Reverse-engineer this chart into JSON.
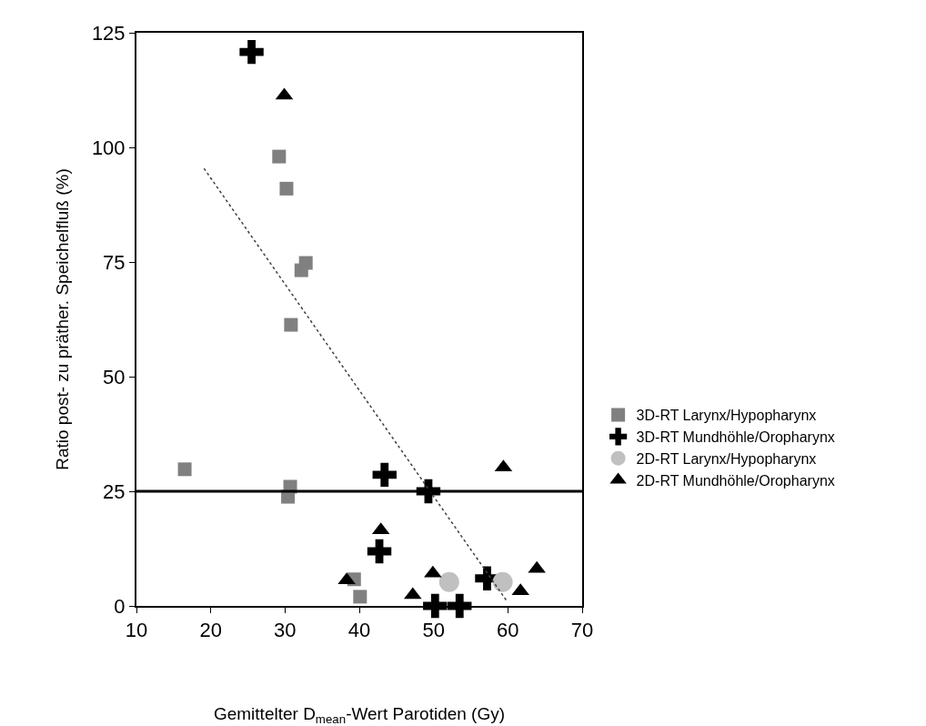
{
  "chart_data": {
    "type": "scatter",
    "xlabel": "Gemittelter D$_{mean}$-Wert Parotiden (Gy)",
    "ylabel": "Ratio post- zu präther. Speichelfluß (%)",
    "xlim": [
      10,
      70
    ],
    "xticks": [
      10,
      20,
      30,
      40,
      50,
      60,
      70
    ],
    "ylim": [
      0,
      125
    ],
    "yticks": [
      0,
      25,
      50,
      75,
      100,
      125
    ],
    "grid": false,
    "legend": "right",
    "series": [
      {
        "name": "3D-RT Larynx/Hypopharynx",
        "color": "#808080",
        "marker": "square",
        "x": [
          29.2,
          30.2,
          32.8,
          32.2,
          30.8,
          16.5,
          30.7,
          30.4,
          39.3,
          40.1
        ],
        "values": [
          98,
          91,
          74.8,
          73.2,
          61.3,
          29.8,
          26,
          23.8,
          5.8,
          2
        ]
      },
      {
        "name": "3D-RT Mundhöhle/Oropharynx",
        "color": "#000000",
        "marker": "cross",
        "x": [
          25.5,
          43.4,
          49.3,
          42.7,
          57.2,
          50.2,
          53.5
        ],
        "values": [
          120.8,
          28.6,
          25,
          11.9,
          6,
          0,
          0
        ]
      },
      {
        "name": "2D-RT Larynx/Hypopharynx",
        "color": "#c0c0c0",
        "marker": "circle",
        "x": [
          52.1,
          59.3
        ],
        "values": [
          5.2,
          5.2
        ]
      },
      {
        "name": "2D-RT Mundhöhle/Oropharynx",
        "color": "#000000",
        "marker": "triangle",
        "x": [
          29.9,
          59.4,
          42.9,
          38.3,
          49.9,
          47.2,
          63.9,
          61.7
        ],
        "values": [
          111.3,
          30.2,
          16.5,
          5.6,
          7.1,
          2.4,
          8.1,
          3.2
        ]
      },
      {
        "type": "line",
        "color": "#404040",
        "marker": "none",
        "line_style": "dotted",
        "x": [
          19.1,
          59.8
        ],
        "values": [
          95.4,
          1.2
        ]
      }
    ],
    "ref_lines": [
      {
        "axis": "y",
        "value": 25,
        "color": "#000000",
        "line_style": "solid"
      }
    ]
  }
}
